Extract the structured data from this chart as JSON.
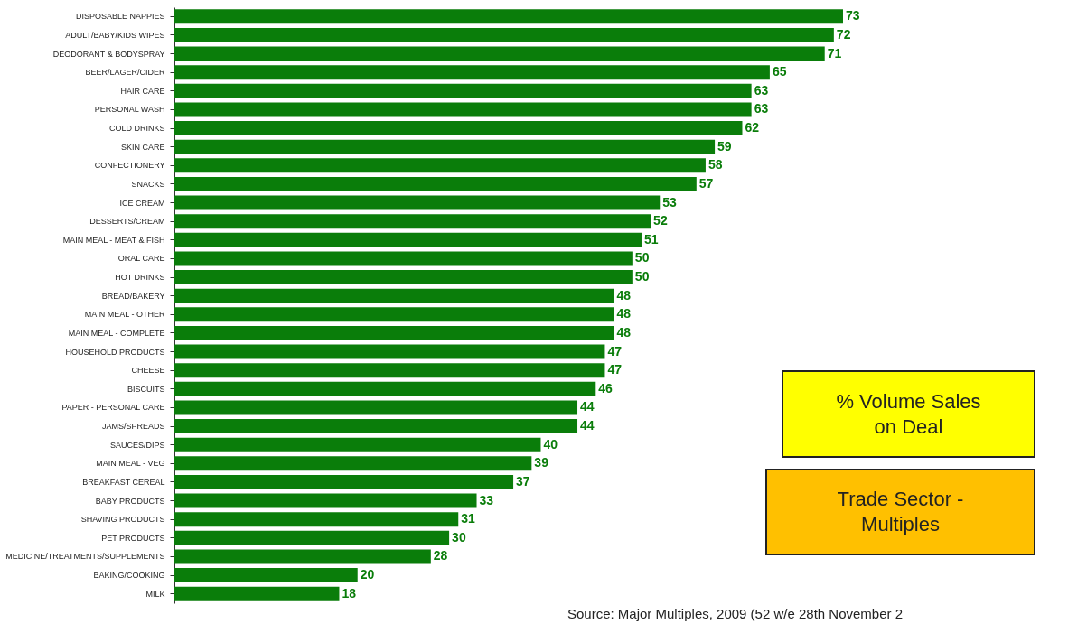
{
  "chart_data": {
    "type": "bar",
    "orientation": "horizontal",
    "data_labels": true,
    "tick_labels": "y",
    "categories": [
      "DISPOSABLE NAPPIES",
      "ADULT/BABY/KIDS WIPES",
      "DEODORANT & BODYSPRAY",
      "BEER/LAGER/CIDER",
      "HAIR CARE",
      "PERSONAL WASH",
      "COLD DRINKS",
      "SKIN CARE",
      "CONFECTIONERY",
      "SNACKS",
      "ICE CREAM",
      "DESSERTS/CREAM",
      "MAIN MEAL - MEAT & FISH",
      "ORAL CARE",
      "HOT DRINKS",
      "BREAD/BAKERY",
      "MAIN MEAL - OTHER",
      "MAIN MEAL - COMPLETE",
      "HOUSEHOLD PRODUCTS",
      "CHEESE",
      "BISCUITS",
      "PAPER - PERSONAL CARE",
      "JAMS/SPREADS",
      "SAUCES/DIPS",
      "MAIN MEAL - VEG",
      "BREAKFAST CEREAL",
      "BABY PRODUCTS",
      "SHAVING PRODUCTS",
      "PET PRODUCTS",
      "MEDICINE/TREATMENTS/SUPPLEMENTS",
      "BAKING/COOKING",
      "MILK"
    ],
    "series": [
      {
        "color": "#0a7d0a",
        "values": [
          73,
          72,
          71,
          65,
          63,
          63,
          62,
          59,
          58,
          57,
          53,
          52,
          51,
          50,
          50,
          48,
          48,
          48,
          47,
          47,
          46,
          44,
          44,
          40,
          39,
          37,
          33,
          31,
          30,
          28,
          20,
          18
        ]
      }
    ],
    "annotations": [
      "% Volume Sales on Deal",
      "Trade Sector - Multiples",
      "Source: Major Multiples, 2009 (52 w/e 28th November 2"
    ]
  }
}
